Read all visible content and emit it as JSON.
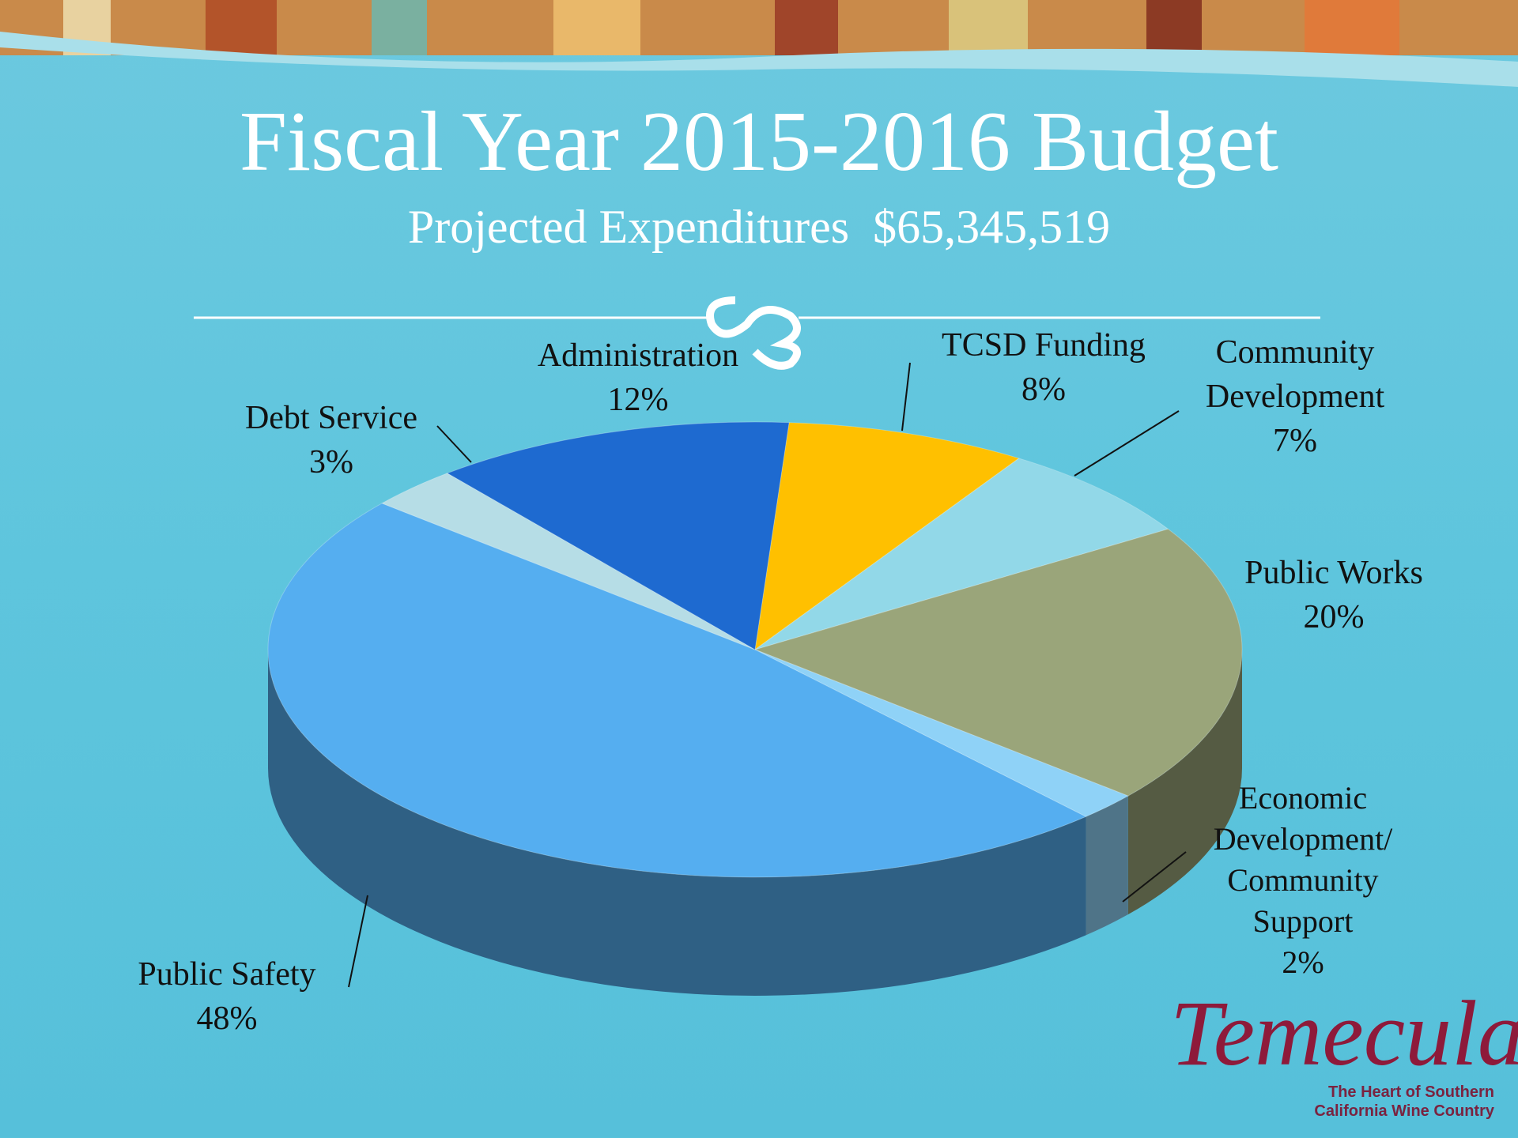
{
  "chart_data": {
    "type": "pie3d",
    "title": "Fiscal Year 2015-2016 Budget",
    "subtitle": "Projected Expenditures  $65,345,519",
    "categories": [
      "TCSD Funding",
      "Community Development",
      "Public Works",
      "Economic Development/ Community Support",
      "Public Safety",
      "Debt Service",
      "Administration"
    ],
    "values": [
      8,
      7,
      20,
      2,
      48,
      3,
      12
    ],
    "value_labels": [
      "8%",
      "7%",
      "20%",
      "2%",
      "48%",
      "3%",
      "12%"
    ],
    "colors": [
      "#ffc000",
      "#92d8e8",
      "#9aa57a",
      "#8fd2f7",
      "#55aef0",
      "#b6dde6",
      "#1e6ad0"
    ]
  },
  "logo": {
    "name": "Temecula",
    "tagline": "The Heart of Southern California Wine Country"
  }
}
